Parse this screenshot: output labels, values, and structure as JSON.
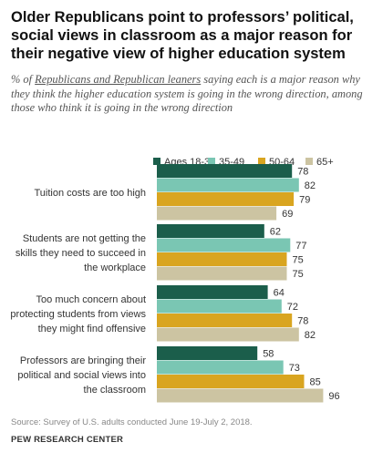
{
  "title": "Older Republicans point to professors’ political, social views in classroom as a major reason for their negative view of higher education system",
  "subtitle_pre": "% of ",
  "subtitle_link": "Republicans and Republican leaners",
  "subtitle_post": " saying each is a major reason why they think the higher education system is going in the wrong direction, among those who think it is going in the wrong direction",
  "source": "Source: Survey of U.S. adults conducted June 19-July 2, 2018.",
  "credit": "PEW RESEARCH CENTER",
  "chart_data": {
    "type": "bar",
    "orientation": "horizontal",
    "categories": [
      "Tuition costs are too high",
      "Students are not getting the skills they need to succeed in the workplace",
      "Too much concern about protecting students from views they might find offensive",
      "Professors are bringing their political and social views into the classroom"
    ],
    "category_lines": [
      [
        "Tuition costs are too high"
      ],
      [
        "Students are not getting the",
        "skills they need to succeed in",
        "the workplace"
      ],
      [
        "Too much concern about",
        "protecting students from views",
        "they might find offensive"
      ],
      [
        "Professors are bringing their",
        "political and social views into",
        "the classroom"
      ]
    ],
    "series": [
      {
        "name": "Ages 18-34",
        "color": "#1b5e4b",
        "values": [
          78,
          62,
          64,
          58
        ]
      },
      {
        "name": "35-49",
        "color": "#7ac6b3",
        "values": [
          82,
          77,
          72,
          73
        ]
      },
      {
        "name": "50-64",
        "color": "#d9a520",
        "values": [
          79,
          75,
          78,
          85
        ]
      },
      {
        "name": "65+",
        "color": "#ccc4a2",
        "values": [
          69,
          75,
          82,
          96
        ]
      }
    ],
    "xlim": [
      0,
      100
    ],
    "legend_position": "top",
    "grid": false,
    "data_labels": true
  }
}
